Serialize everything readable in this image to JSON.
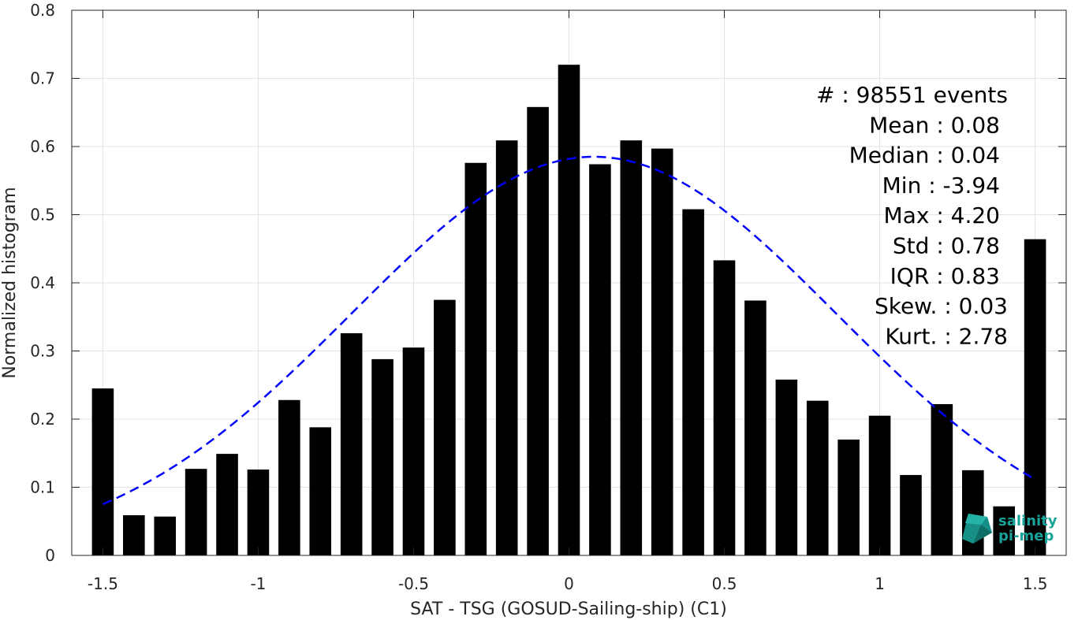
{
  "chart_data": {
    "type": "bar",
    "xlabel": "SAT - TSG (GOSUD-Sailing-ship) (C1)",
    "ylabel": "Normalized histogram",
    "xlim": [
      -1.6,
      1.6
    ],
    "ylim": [
      0,
      0.8
    ],
    "grid": true,
    "xticks": [
      -1.5,
      -1,
      -0.5,
      0,
      0.5,
      1,
      1.5
    ],
    "xtick_labels": [
      "-1.5",
      "-1",
      "-0.5",
      "0",
      "0.5",
      "1",
      "1.5"
    ],
    "yticks": [
      0,
      0.1,
      0.2,
      0.3,
      0.4,
      0.5,
      0.6,
      0.7,
      0.8
    ],
    "ytick_labels": [
      "0",
      "0.1",
      "0.2",
      "0.3",
      "0.4",
      "0.5",
      "0.6",
      "0.7",
      "0.8"
    ],
    "bar_width": 0.07,
    "bars": {
      "x": [
        -1.5,
        -1.4,
        -1.3,
        -1.2,
        -1.1,
        -1.0,
        -0.9,
        -0.8,
        -0.7,
        -0.6,
        -0.5,
        -0.4,
        -0.3,
        -0.2,
        -0.1,
        0.0,
        0.1,
        0.2,
        0.3,
        0.4,
        0.5,
        0.6,
        0.7,
        0.8,
        0.9,
        1.0,
        1.1,
        1.2,
        1.3,
        1.4,
        1.5
      ],
      "values": [
        0.245,
        0.059,
        0.057,
        0.127,
        0.149,
        0.126,
        0.228,
        0.188,
        0.326,
        0.288,
        0.305,
        0.375,
        0.576,
        0.609,
        0.658,
        0.72,
        0.574,
        0.609,
        0.597,
        0.508,
        0.433,
        0.374,
        0.258,
        0.227,
        0.17,
        0.205,
        0.118,
        0.222,
        0.125,
        0.072,
        0.464
      ],
      "color": "#000000"
    },
    "fit": {
      "type": "gaussian",
      "mean": 0.08,
      "std": 0.78,
      "peak": 0.585,
      "x_range": [
        -1.5,
        1.5
      ],
      "color": "#0000ff",
      "style": "dashed"
    },
    "annotations": [
      "#  : 98551 events",
      "Mean : 0.08",
      "Median : 0.04",
      "Min : -3.94",
      "Max : 4.20",
      "Std : 0.78",
      "IQR : 0.83",
      "Skew. : 0.03",
      "Kurt. : 2.78"
    ]
  },
  "logo": {
    "line1": "salinity",
    "line2": "pi-mep",
    "color": "#1aa39a"
  }
}
